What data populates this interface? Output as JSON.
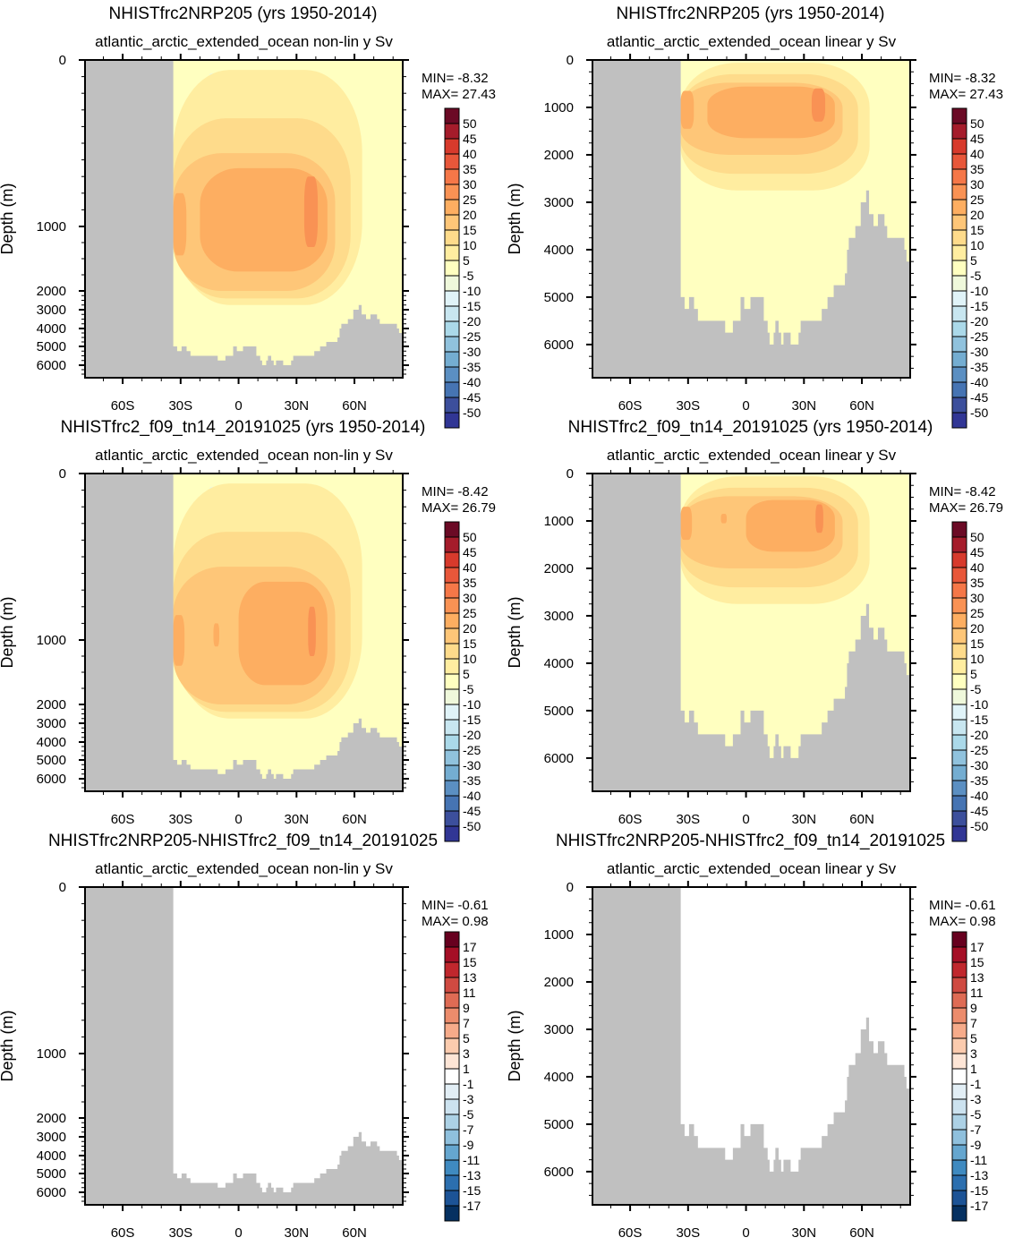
{
  "shared": {
    "x_ticks": [
      {
        "v": -60,
        "label": "60S"
      },
      {
        "v": -30,
        "label": "30S"
      },
      {
        "v": 0,
        "label": "0"
      },
      {
        "v": 30,
        "label": "30N"
      },
      {
        "v": 60,
        "label": "60N"
      }
    ],
    "xlim": [
      -79.5,
      85
    ],
    "ylim": [
      0,
      6700
    ],
    "ylabel": "Depth (m)",
    "bathymetry_steps": [
      [
        -79.5,
        0
      ],
      [
        -33.8,
        5000
      ],
      [
        -31.8,
        5250
      ],
      [
        -29.5,
        5000
      ],
      [
        -26.9,
        5250
      ],
      [
        -24.9,
        5500
      ],
      [
        -10.8,
        5750
      ],
      [
        -6.8,
        5500
      ],
      [
        -2.8,
        5000
      ],
      [
        -0.9,
        5250
      ],
      [
        2.3,
        5000
      ],
      [
        9.2,
        5500
      ],
      [
        11.2,
        5750
      ],
      [
        12.2,
        6000
      ],
      [
        14.3,
        5750
      ],
      [
        15.2,
        5500
      ],
      [
        16.9,
        5750
      ],
      [
        18.2,
        6000
      ],
      [
        19.4,
        5750
      ],
      [
        23.1,
        6000
      ],
      [
        27.2,
        5750
      ],
      [
        28.3,
        5500
      ],
      [
        39.2,
        5250
      ],
      [
        42.2,
        5000
      ],
      [
        45.4,
        4750
      ],
      [
        51.2,
        4500
      ],
      [
        52.3,
        4000
      ],
      [
        53.2,
        3750
      ],
      [
        56.6,
        3500
      ],
      [
        59.4,
        3000
      ],
      [
        62.2,
        2750
      ],
      [
        63.7,
        3250
      ],
      [
        66,
        3500
      ],
      [
        68.3,
        3250
      ],
      [
        71.7,
        3500
      ],
      [
        73.1,
        3750
      ],
      [
        82,
        4000
      ],
      [
        83.1,
        4250
      ]
    ],
    "colorbars": {
      "full": {
        "labels": [
          "50",
          "45",
          "40",
          "35",
          "30",
          "25",
          "20",
          "15",
          "10",
          "5",
          "-5",
          "-10",
          "-15",
          "-20",
          "-25",
          "-30",
          "-35",
          "-40",
          "-45",
          "-50"
        ],
        "colors": [
          "#6b0a25",
          "#a51c2b",
          "#d73a2c",
          "#e8573a",
          "#f57748",
          "#f99254",
          "#fdae61",
          "#fec678",
          "#fedb8b",
          "#ffeda0",
          "#ffffc0",
          "#eff8db",
          "#e0f3f8",
          "#c8e6f0",
          "#abd9e9",
          "#90c2dd",
          "#74add1",
          "#5b8fc2",
          "#4674b3",
          "#3c4f9c",
          "#313695"
        ]
      },
      "diff": {
        "labels": [
          "17",
          "15",
          "13",
          "11",
          "9",
          "7",
          "5",
          "3",
          "1",
          "-1",
          "-3",
          "-5",
          "-7",
          "-9",
          "-11",
          "-13",
          "-15",
          "-17"
        ],
        "colors": [
          "#67001f",
          "#a50f26",
          "#c0272d",
          "#cf4a41",
          "#de6b54",
          "#ec8c6c",
          "#f6ab8a",
          "#fbcbae",
          "#fde5d6",
          "#ffffff",
          "#e2eef5",
          "#cce2ef",
          "#acd1e5",
          "#8fc0dd",
          "#65a6cf",
          "#3f8ac0",
          "#2c6faf",
          "#1c5396",
          "#053061"
        ]
      }
    }
  },
  "chart_data": [
    {
      "type": "contour",
      "title": "NHISTfrc2NRP205 (yrs 1950-2014)",
      "subtitle_left": "atlantic_arctic_extended_ocean",
      "subtitle_right": "non-lin y Sv",
      "y_scale": "nonlinear",
      "y_ticks": [
        "0",
        "1000",
        "2000",
        "3000",
        "4000",
        "5000",
        "6000"
      ],
      "min_label": "MIN= -8.32",
      "max_label": "MAX= 27.43",
      "colorbar": "full",
      "background": "#ffffc0",
      "regions": [
        {
          "level": -10,
          "lat": [
            -15.7,
            -11
          ],
          "depth": [
            80,
            240
          ]
        },
        {
          "level": -10,
          "lat": [
            -4,
            -1
          ],
          "depth": [
            80,
            240
          ]
        },
        {
          "level": 5,
          "lat": [
            -34,
            64
          ],
          "depth": [
            60,
            2750
          ]
        },
        {
          "level": 10,
          "lat": [
            -34,
            58
          ],
          "depth": [
            350,
            2400
          ]
        },
        {
          "level": 15,
          "lat": [
            -34,
            50
          ],
          "depth": [
            560,
            2000
          ]
        },
        {
          "level": 20,
          "lat": [
            -34,
            -27
          ],
          "depth": [
            800,
            1450
          ]
        },
        {
          "level": 20,
          "lat": [
            -20,
            46
          ],
          "depth": [
            650,
            1700
          ]
        },
        {
          "level": 25,
          "lat": [
            34,
            41
          ],
          "depth": [
            700,
            1320
          ]
        }
      ]
    },
    {
      "type": "contour",
      "title": "NHISTfrc2NRP205 (yrs 1950-2014)",
      "subtitle_left": "atlantic_arctic_extended_ocean",
      "subtitle_right": "linear y Sv",
      "y_scale": "linear",
      "y_ticks": [
        "0",
        "1000",
        "2000",
        "3000",
        "4000",
        "5000",
        "6000"
      ],
      "min_label": "MIN= -8.32",
      "max_label": "MAX= 27.43",
      "colorbar": "full",
      "background": "#ffffc0",
      "regions": [
        {
          "level": 5,
          "lat": [
            -34,
            64
          ],
          "depth": [
            60,
            2750
          ]
        },
        {
          "level": 10,
          "lat": [
            -34,
            58
          ],
          "depth": [
            300,
            2400
          ]
        },
        {
          "level": 15,
          "lat": [
            -34,
            50
          ],
          "depth": [
            480,
            2000
          ]
        },
        {
          "level": 20,
          "lat": [
            -34,
            -27
          ],
          "depth": [
            650,
            1450
          ]
        },
        {
          "level": 20,
          "lat": [
            -20,
            46
          ],
          "depth": [
            560,
            1650
          ]
        },
        {
          "level": 25,
          "lat": [
            34,
            41
          ],
          "depth": [
            600,
            1300
          ]
        }
      ]
    },
    {
      "type": "contour",
      "title": "NHISTfrc2_f09_tn14_20191025 (yrs 1950-2014)",
      "subtitle_left": "atlantic_arctic_extended_ocean",
      "subtitle_right": "non-lin y Sv",
      "y_scale": "nonlinear",
      "y_ticks": [
        "0",
        "1000",
        "2000",
        "3000",
        "4000",
        "5000",
        "6000"
      ],
      "min_label": "MIN= -8.42",
      "max_label": "MAX= 26.79",
      "colorbar": "full",
      "background": "#ffffc0",
      "regions": [
        {
          "level": -10,
          "lat": [
            -15.7,
            -11
          ],
          "depth": [
            80,
            240
          ]
        },
        {
          "level": -10,
          "lat": [
            -4,
            -1
          ],
          "depth": [
            80,
            240
          ]
        },
        {
          "level": 5,
          "lat": [
            -34,
            64
          ],
          "depth": [
            60,
            2750
          ]
        },
        {
          "level": 10,
          "lat": [
            -34,
            58
          ],
          "depth": [
            350,
            2400
          ]
        },
        {
          "level": 15,
          "lat": [
            -34,
            50
          ],
          "depth": [
            560,
            2000
          ]
        },
        {
          "level": 20,
          "lat": [
            -34,
            -28
          ],
          "depth": [
            850,
            1400
          ]
        },
        {
          "level": 20,
          "lat": [
            -13,
            -10
          ],
          "depth": [
            900,
            1100
          ]
        },
        {
          "level": 20,
          "lat": [
            0,
            46
          ],
          "depth": [
            650,
            1700
          ]
        },
        {
          "level": 25,
          "lat": [
            36,
            40
          ],
          "depth": [
            800,
            1250
          ]
        }
      ]
    },
    {
      "type": "contour",
      "title": "NHISTfrc2_f09_tn14_20191025 (yrs 1950-2014)",
      "subtitle_left": "atlantic_arctic_extended_ocean",
      "subtitle_right": "linear y Sv",
      "y_scale": "linear",
      "y_ticks": [
        "0",
        "1000",
        "2000",
        "3000",
        "4000",
        "5000",
        "6000"
      ],
      "min_label": "MIN= -8.42",
      "max_label": "MAX= 26.79",
      "colorbar": "full",
      "background": "#ffffc0",
      "regions": [
        {
          "level": 5,
          "lat": [
            -34,
            64
          ],
          "depth": [
            60,
            2750
          ]
        },
        {
          "level": 10,
          "lat": [
            -34,
            58
          ],
          "depth": [
            300,
            2400
          ]
        },
        {
          "level": 15,
          "lat": [
            -34,
            50
          ],
          "depth": [
            480,
            2000
          ]
        },
        {
          "level": 20,
          "lat": [
            -34,
            -28
          ],
          "depth": [
            700,
            1400
          ]
        },
        {
          "level": 20,
          "lat": [
            -13,
            -10
          ],
          "depth": [
            850,
            1050
          ]
        },
        {
          "level": 20,
          "lat": [
            0,
            46
          ],
          "depth": [
            560,
            1650
          ]
        },
        {
          "level": 25,
          "lat": [
            36,
            40
          ],
          "depth": [
            650,
            1250
          ]
        }
      ]
    },
    {
      "type": "contour",
      "title": "NHISTfrc2NRP205-NHISTfrc2_f09_tn14_20191025",
      "subtitle_left": "atlantic_arctic_extended_ocean",
      "subtitle_right": "non-lin y Sv",
      "y_scale": "nonlinear",
      "y_ticks": [
        "0",
        "1000",
        "2000",
        "3000",
        "4000",
        "5000",
        "6000"
      ],
      "min_label": "MIN= -0.61",
      "max_label": "MAX=  0.98",
      "colorbar": "diff",
      "background": "#ffffff",
      "regions": []
    },
    {
      "type": "contour",
      "title": "NHISTfrc2NRP205-NHISTfrc2_f09_tn14_20191025",
      "subtitle_left": "atlantic_arctic_extended_ocean",
      "subtitle_right": "linear y Sv",
      "y_scale": "linear",
      "y_ticks": [
        "0",
        "1000",
        "2000",
        "3000",
        "4000",
        "5000",
        "6000"
      ],
      "min_label": "MIN= -0.61",
      "max_label": "MAX=  0.98",
      "colorbar": "diff",
      "background": "#ffffff",
      "regions": []
    }
  ]
}
